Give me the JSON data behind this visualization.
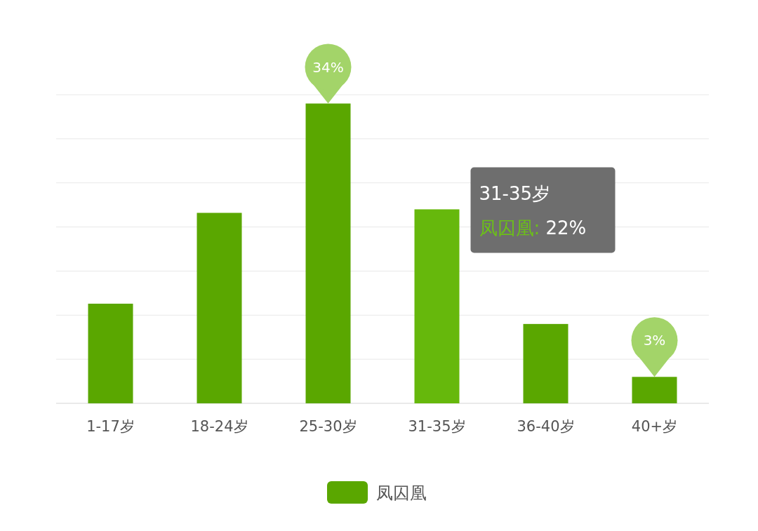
{
  "chart_data": {
    "type": "bar",
    "categories": [
      "1-17岁",
      "18-24岁",
      "25-30岁",
      "31-35岁",
      "36-40岁",
      "40+岁"
    ],
    "series": [
      {
        "name": "凤囚凰",
        "color": "#5aa700",
        "colors": [
          "#5aa700",
          "#5aa700",
          "#5aa700",
          "#66b80c",
          "#5aa700",
          "#5aa700"
        ],
        "values": [
          11.3,
          21.6,
          34,
          22,
          9,
          3
        ],
        "value_labels": [
          null,
          null,
          "34%",
          null,
          null,
          "3%"
        ]
      }
    ],
    "ylim": [
      0,
      35
    ],
    "yticks": [
      {
        "value": 0,
        "label": null
      },
      {
        "value": 5,
        "label": null
      },
      {
        "value": 10,
        "label": null
      },
      {
        "value": 15,
        "label": null
      },
      {
        "value": 20,
        "label": null
      },
      {
        "value": 25,
        "label": null
      },
      {
        "value": 30,
        "label": null
      },
      {
        "value": 35,
        "label": null
      }
    ],
    "tick_labels": "x",
    "grid": "y",
    "legend": "bottom",
    "annotations": [
      {
        "text": "31-35岁",
        "x": "31-35岁",
        "y": 22
      },
      {
        "text": "凤囚凰: 22%",
        "x": "31-35岁",
        "y": 22
      }
    ]
  }
}
